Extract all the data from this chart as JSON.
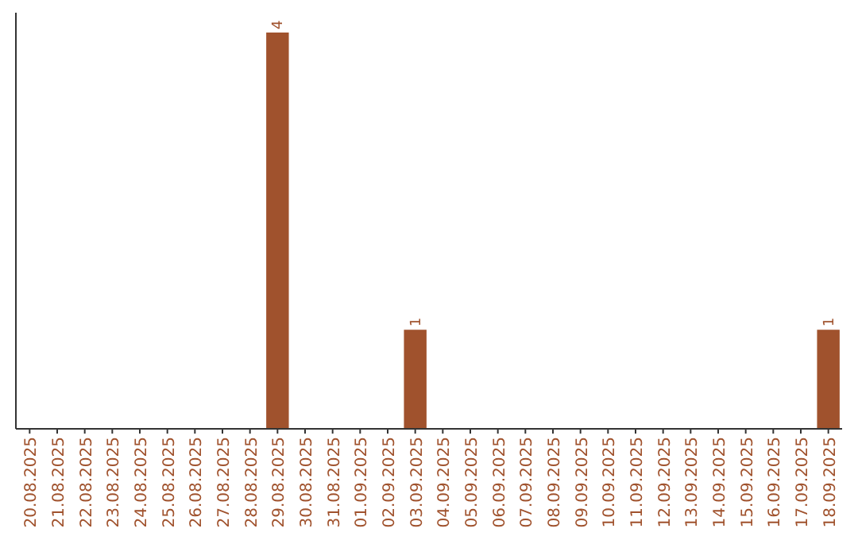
{
  "chart_data": {
    "type": "bar",
    "categories": [
      "20.08.2025",
      "21.08.2025",
      "22.08.2025",
      "23.08.2025",
      "24.08.2025",
      "25.08.2025",
      "26.08.2025",
      "27.08.2025",
      "28.08.2025",
      "29.08.2025",
      "30.08.2025",
      "31.08.2025",
      "01.09.2025",
      "02.09.2025",
      "03.09.2025",
      "04.09.2025",
      "05.09.2025",
      "06.09.2025",
      "07.09.2025",
      "08.09.2025",
      "09.09.2025",
      "10.09.2025",
      "11.09.2025",
      "12.09.2025",
      "13.09.2025",
      "14.09.2025",
      "15.09.2025",
      "16.09.2025",
      "17.09.2025",
      "18.09.2025"
    ],
    "values": [
      0,
      0,
      0,
      0,
      0,
      0,
      0,
      0,
      0,
      4,
      0,
      0,
      0,
      0,
      1,
      0,
      0,
      0,
      0,
      0,
      0,
      0,
      0,
      0,
      0,
      0,
      0,
      0,
      0,
      1
    ],
    "value_labels": [
      null,
      null,
      null,
      null,
      null,
      null,
      null,
      null,
      null,
      "4",
      null,
      null,
      null,
      null,
      "1",
      null,
      null,
      null,
      null,
      null,
      null,
      null,
      null,
      null,
      null,
      null,
      null,
      null,
      null,
      "1"
    ],
    "color": "#a0522d",
    "ylim": [
      0,
      4.2
    ],
    "tick_labels": "x"
  }
}
